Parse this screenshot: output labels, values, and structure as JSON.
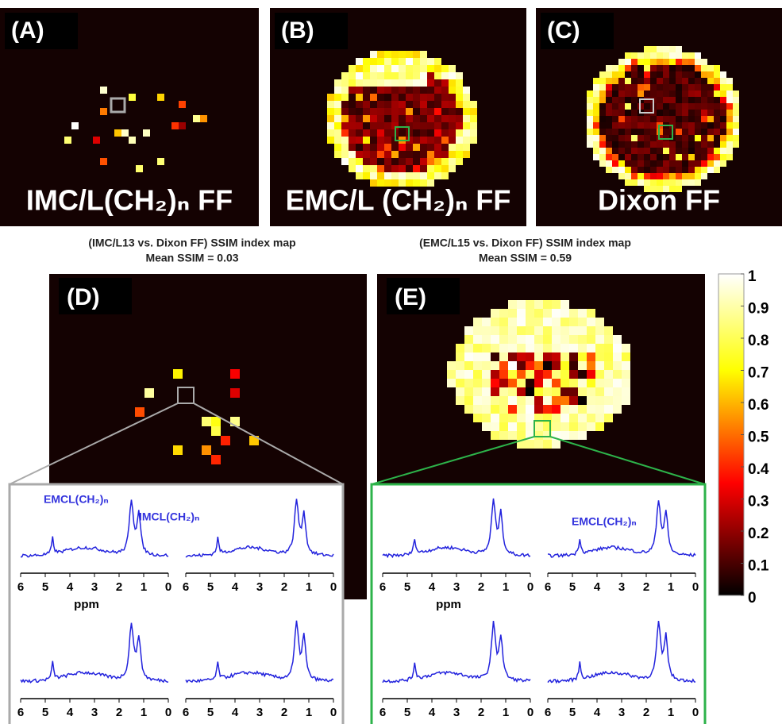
{
  "panels": [
    {
      "label": "(A)",
      "caption": "IMC/L(CH₂)ₙ FF"
    },
    {
      "label": "(B)",
      "caption": "EMC/L (CH₂)ₙ FF"
    },
    {
      "label": "(C)",
      "caption": "Dixon FF"
    }
  ],
  "ssim_maps": [
    {
      "label": "(D)",
      "title": "(IMC/L13 vs. Dixon FF) SSIM index map",
      "mean": "Mean SSIM = 0.03",
      "annotations": [
        "EMCL(CH₂)ₙ",
        "IMCL(CH₂)ₙ"
      ]
    },
    {
      "label": "(E)",
      "title": "(EMC/L15 vs. Dixon FF) SSIM index map",
      "mean": "Mean SSIM = 0.59",
      "annotations": [
        "EMCL(CH₂)ₙ"
      ]
    }
  ],
  "colorbar": {
    "ticks": [
      0,
      0.1,
      0.2,
      0.3,
      0.4,
      0.5,
      0.6,
      0.7,
      0.8,
      0.9,
      1
    ]
  },
  "spectrum_axis": {
    "ticks": [
      6,
      5,
      4,
      3,
      2,
      1,
      0
    ],
    "label": "ppm"
  }
}
